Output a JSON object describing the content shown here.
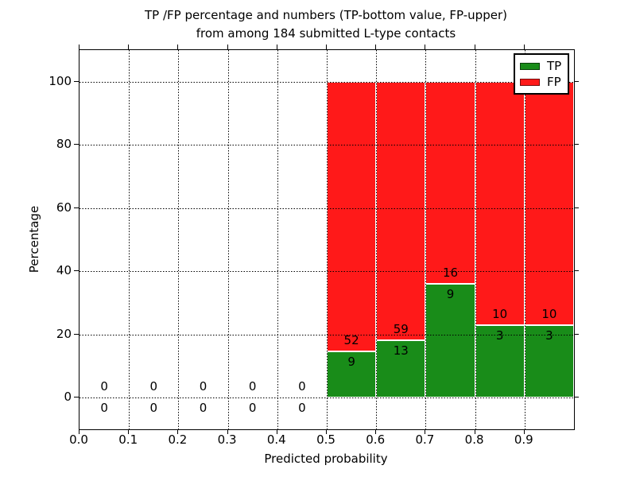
{
  "title": {
    "line1": "TP /FP percentage and numbers (TP-bottom value, FP-upper)",
    "line2": "from among 184 submitted L-type contacts"
  },
  "colors": {
    "tp_green": "#198C19",
    "fp_red": "#FF1919",
    "axis": "#000000",
    "background": "#ffffff",
    "bar_edge": "#ffffff"
  },
  "chart_data": {
    "type": "bar",
    "stacked": true,
    "title": "TP /FP percentage and numbers (TP-bottom value, FP-upper) from among 184 submitted L-type contacts",
    "xlabel": "Predicted probability",
    "ylabel": "Percentage",
    "xlim": [
      0.0,
      1.0
    ],
    "ylim": [
      -10,
      110
    ],
    "grid": true,
    "legend_position": "upper right",
    "total_contacts": 184,
    "x_tick_values": [
      0.0,
      0.1,
      0.2,
      0.3,
      0.4,
      0.5,
      0.6,
      0.7,
      0.8,
      0.9
    ],
    "x_tick_labels": [
      "0.0",
      "0.1",
      "0.2",
      "0.3",
      "0.4",
      "0.5",
      "0.6",
      "0.7",
      "0.8",
      "0.9"
    ],
    "y_tick_values": [
      0,
      20,
      40,
      60,
      80,
      100
    ],
    "y_tick_labels": [
      "0",
      "20",
      "40",
      "60",
      "80",
      "100"
    ],
    "bin_width": 0.1,
    "series": [
      {
        "name": "TP",
        "color": "#198C19"
      },
      {
        "name": "FP",
        "color": "#FF1919"
      }
    ],
    "bins": [
      {
        "x_start": 0.0,
        "x_end": 0.1,
        "tp": 0,
        "fp": 0,
        "tp_pct": 0,
        "fp_pct": 0
      },
      {
        "x_start": 0.1,
        "x_end": 0.2,
        "tp": 0,
        "fp": 0,
        "tp_pct": 0,
        "fp_pct": 0
      },
      {
        "x_start": 0.2,
        "x_end": 0.3,
        "tp": 0,
        "fp": 0,
        "tp_pct": 0,
        "fp_pct": 0
      },
      {
        "x_start": 0.3,
        "x_end": 0.4,
        "tp": 0,
        "fp": 0,
        "tp_pct": 0,
        "fp_pct": 0
      },
      {
        "x_start": 0.4,
        "x_end": 0.5,
        "tp": 0,
        "fp": 0,
        "tp_pct": 0,
        "fp_pct": 0
      },
      {
        "x_start": 0.5,
        "x_end": 0.6,
        "tp": 9,
        "fp": 52,
        "tp_pct": 14.75,
        "fp_pct": 85.25
      },
      {
        "x_start": 0.6,
        "x_end": 0.7,
        "tp": 13,
        "fp": 59,
        "tp_pct": 18.06,
        "fp_pct": 81.94
      },
      {
        "x_start": 0.7,
        "x_end": 0.8,
        "tp": 9,
        "fp": 16,
        "tp_pct": 36.0,
        "fp_pct": 64.0
      },
      {
        "x_start": 0.8,
        "x_end": 0.9,
        "tp": 3,
        "fp": 10,
        "tp_pct": 23.08,
        "fp_pct": 76.92
      },
      {
        "x_start": 0.9,
        "x_end": 1.0,
        "tp": 3,
        "fp": 10,
        "tp_pct": 23.08,
        "fp_pct": 76.92
      }
    ],
    "legend": {
      "entries": [
        {
          "label": "TP",
          "color": "#198C19"
        },
        {
          "label": "FP",
          "color": "#FF1919"
        }
      ]
    }
  }
}
